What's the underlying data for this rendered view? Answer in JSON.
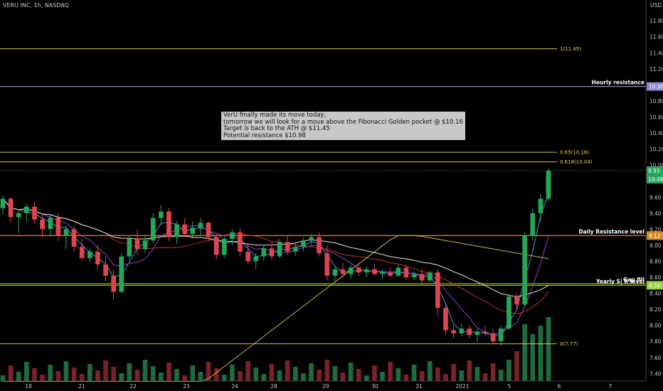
{
  "header": {
    "title": "VERU INC, 1h, NASDAQ"
  },
  "currency": "USD",
  "note": {
    "lines": [
      "VerU finally made its move today,",
      "tomorrow we will look for a move above the Fibonacci Golden pocket @ $10.16",
      "Target is back to the ATH @ $11.45",
      "Potential resistance $10.98"
    ]
  },
  "chart_data": {
    "type": "candlestick",
    "y_ticks": [
      "11.80",
      "11.60",
      "11.40",
      "11.20",
      "11.00",
      "10.80",
      "10.60",
      "10.40",
      "10.20",
      "10.00",
      "9.80",
      "9.60",
      "9.40",
      "9.20",
      "9.00",
      "8.80",
      "8.60",
      "8.40",
      "8.20",
      "8.00",
      "7.80",
      "7.60",
      "7.40"
    ],
    "ylim": [
      7.27,
      11.97
    ],
    "x_ticks": [
      "18",
      "21",
      "22",
      "23",
      "24",
      "28",
      "29",
      "30",
      "31",
      "2021",
      "5",
      "6",
      "7"
    ],
    "levels": [
      {
        "label": "1(11.45)",
        "price": 11.45,
        "kind": "fib",
        "color": "#d4c85a"
      },
      {
        "label": "Hourly resistance",
        "price": 10.98,
        "axis_label": "10.98",
        "kind": "level",
        "color": "#8a8ad0"
      },
      {
        "label": "0.65(10.16)",
        "price": 10.16,
        "kind": "fib",
        "color": "#d4c85a"
      },
      {
        "label": "0.618(10.04)",
        "price": 10.04,
        "kind": "fib",
        "color": "#d4c85a"
      },
      {
        "label": "Daily Resistance level",
        "price": 9.12,
        "axis_label": "9.12",
        "kind": "level",
        "color": "#d08a2a"
      },
      {
        "label": "Gap fill",
        "price": 8.52,
        "kind": "level",
        "color": "#b0c020"
      },
      {
        "label": "Yearly  S| R level",
        "price": 8.5,
        "axis_label": "8.50",
        "kind": "level",
        "color": "#9ad040"
      },
      {
        "label": "0(7.77)",
        "price": 7.77,
        "kind": "fib",
        "color": "#d4c85a"
      }
    ],
    "price_labels": [
      {
        "value": "9.93",
        "color": "#26a65b"
      },
      {
        "value": "10:06",
        "color": "#26a65b"
      }
    ],
    "last_price": 9.93,
    "candles": [
      [
        9.46,
        9.62,
        9.38,
        9.58
      ],
      [
        9.58,
        9.6,
        9.28,
        9.35
      ],
      [
        9.35,
        9.45,
        9.15,
        9.4
      ],
      [
        9.4,
        9.52,
        9.3,
        9.48
      ],
      [
        9.48,
        9.55,
        9.28,
        9.32
      ],
      [
        9.32,
        9.4,
        9.1,
        9.2
      ],
      [
        9.2,
        9.38,
        9.12,
        9.34
      ],
      [
        9.34,
        9.4,
        9.05,
        9.12
      ],
      [
        9.12,
        9.25,
        8.95,
        9.2
      ],
      [
        9.2,
        9.24,
        8.92,
        8.98
      ],
      [
        8.98,
        9.08,
        8.8,
        8.84
      ],
      [
        8.84,
        8.96,
        8.78,
        8.92
      ],
      [
        8.92,
        9.0,
        8.7,
        8.76
      ],
      [
        8.76,
        8.86,
        8.55,
        8.62
      ],
      [
        8.62,
        8.7,
        8.32,
        8.42
      ],
      [
        8.42,
        8.9,
        8.4,
        8.86
      ],
      [
        8.86,
        9.12,
        8.82,
        9.08
      ],
      [
        9.08,
        9.2,
        8.88,
        8.95
      ],
      [
        8.95,
        9.12,
        8.9,
        9.06
      ],
      [
        9.06,
        9.4,
        9.02,
        9.34
      ],
      [
        9.34,
        9.5,
        9.25,
        9.42
      ],
      [
        9.42,
        9.46,
        9.05,
        9.1
      ],
      [
        9.1,
        9.3,
        9.02,
        9.26
      ],
      [
        9.26,
        9.34,
        9.1,
        9.14
      ],
      [
        9.14,
        9.3,
        9.08,
        9.22
      ],
      [
        9.22,
        9.34,
        9.12,
        9.28
      ],
      [
        9.28,
        9.3,
        9.05,
        9.1
      ],
      [
        9.1,
        9.14,
        8.82,
        8.88
      ],
      [
        8.88,
        9.12,
        8.84,
        9.08
      ],
      [
        9.08,
        9.2,
        9.0,
        9.16
      ],
      [
        9.16,
        9.22,
        8.86,
        8.92
      ],
      [
        8.92,
        9.02,
        8.76,
        8.8
      ],
      [
        8.8,
        8.9,
        8.7,
        8.86
      ],
      [
        8.86,
        9.0,
        8.8,
        8.96
      ],
      [
        8.96,
        9.04,
        8.82,
        8.86
      ],
      [
        8.86,
        9.08,
        8.84,
        9.04
      ],
      [
        9.04,
        9.12,
        8.88,
        8.92
      ],
      [
        8.92,
        9.02,
        8.86,
        8.98
      ],
      [
        8.98,
        9.1,
        8.92,
        9.06
      ],
      [
        9.06,
        9.14,
        9.0,
        9.1
      ],
      [
        9.1,
        9.16,
        8.86,
        8.9
      ],
      [
        8.9,
        9.0,
        8.56,
        8.62
      ],
      [
        8.62,
        8.74,
        8.54,
        8.7
      ],
      [
        8.7,
        8.78,
        8.6,
        8.64
      ],
      [
        8.64,
        8.76,
        8.58,
        8.72
      ],
      [
        8.72,
        8.78,
        8.62,
        8.66
      ],
      [
        8.66,
        8.74,
        8.6,
        8.7
      ],
      [
        8.7,
        8.76,
        8.62,
        8.64
      ],
      [
        8.64,
        8.7,
        8.58,
        8.66
      ],
      [
        8.66,
        8.72,
        8.6,
        8.62
      ],
      [
        8.62,
        8.76,
        8.6,
        8.72
      ],
      [
        8.72,
        8.76,
        8.56,
        8.6
      ],
      [
        8.6,
        8.68,
        8.56,
        8.64
      ],
      [
        8.64,
        8.7,
        8.5,
        8.56
      ],
      [
        8.56,
        8.68,
        8.54,
        8.66
      ],
      [
        8.66,
        8.7,
        8.12,
        8.22
      ],
      [
        8.22,
        8.26,
        7.88,
        7.94
      ],
      [
        7.94,
        8.0,
        7.84,
        7.9
      ],
      [
        7.9,
        8.02,
        7.86,
        7.96
      ],
      [
        7.96,
        8.0,
        7.84,
        7.88
      ],
      [
        7.88,
        7.96,
        7.8,
        7.92
      ],
      [
        7.92,
        8.0,
        7.86,
        7.9
      ],
      [
        7.9,
        7.96,
        7.76,
        7.8
      ],
      [
        7.8,
        8.0,
        7.74,
        7.96
      ],
      [
        7.96,
        8.4,
        7.94,
        8.36
      ],
      [
        8.36,
        8.4,
        8.2,
        8.26
      ],
      [
        8.26,
        9.16,
        8.24,
        9.12
      ],
      [
        9.12,
        9.46,
        9.06,
        9.4
      ],
      [
        9.4,
        9.64,
        9.3,
        9.58
      ],
      [
        9.58,
        9.96,
        9.55,
        9.93
      ]
    ]
  }
}
